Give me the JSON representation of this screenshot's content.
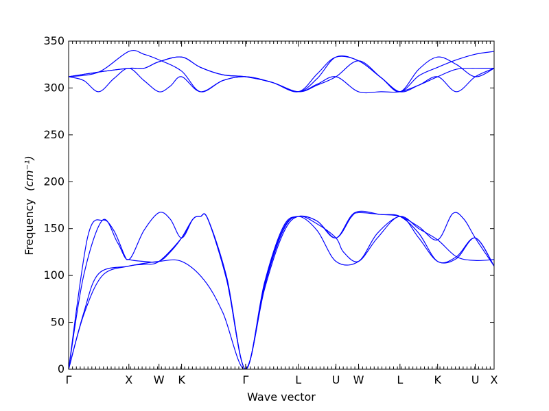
{
  "chart_data": {
    "type": "line",
    "title": "",
    "xlabel": "Wave vector",
    "ylabel": "Frequency",
    "ylabel_unit": "(cm⁻¹)",
    "ylim": [
      0,
      350
    ],
    "yticks": [
      0,
      50,
      100,
      150,
      200,
      250,
      300,
      350
    ],
    "xlim": [
      0,
      11.3
    ],
    "points": [
      {
        "label": "Γ",
        "x": 0
      },
      {
        "label": "X",
        "x": 1.6
      },
      {
        "label": "W",
        "x": 2.4
      },
      {
        "label": "K",
        "x": 3.0
      },
      {
        "label": "Γ",
        "x": 4.7
      },
      {
        "label": "L",
        "x": 6.1
      },
      {
        "label": "U",
        "x": 7.1
      },
      {
        "label": "W",
        "x": 7.7
      },
      {
        "label": "L",
        "x": 8.8
      },
      {
        "label": "K",
        "x": 9.8
      },
      {
        "label": "U",
        "x": 10.8
      },
      {
        "label": "X",
        "x": 11.3
      }
    ],
    "line_color": "#0000ff",
    "series": [
      {
        "values": [
          [
            0,
            0
          ],
          [
            0.4,
            60
          ],
          [
            0.8,
            102
          ],
          [
            1.6,
            110
          ],
          [
            2.4,
            115
          ],
          [
            3.0,
            115
          ],
          [
            3.6,
            95
          ],
          [
            4.1,
            60
          ],
          [
            4.7,
            0
          ],
          [
            5.2,
            85
          ],
          [
            5.7,
            145
          ],
          [
            6.1,
            163
          ],
          [
            6.6,
            155
          ],
          [
            7.1,
            140
          ],
          [
            7.3,
            125
          ],
          [
            7.7,
            115
          ],
          [
            8.2,
            140
          ],
          [
            8.8,
            163
          ],
          [
            9.3,
            140
          ],
          [
            9.8,
            115
          ],
          [
            10.3,
            118
          ],
          [
            10.8,
            140
          ],
          [
            11.3,
            110
          ]
        ]
      },
      {
        "values": [
          [
            0,
            0
          ],
          [
            0.4,
            58
          ],
          [
            0.9,
            100
          ],
          [
            1.6,
            110
          ],
          [
            2.0,
            112
          ],
          [
            2.4,
            115
          ],
          [
            3.0,
            140
          ],
          [
            3.3,
            160
          ],
          [
            3.5,
            163
          ],
          [
            3.7,
            160
          ],
          [
            4.2,
            95
          ],
          [
            4.7,
            0
          ],
          [
            5.2,
            88
          ],
          [
            5.7,
            148
          ],
          [
            6.1,
            163
          ],
          [
            6.6,
            148
          ],
          [
            7.1,
            115
          ],
          [
            7.7,
            115
          ],
          [
            8.2,
            145
          ],
          [
            8.8,
            163
          ],
          [
            9.3,
            150
          ],
          [
            9.8,
            138
          ],
          [
            10.3,
            120
          ],
          [
            10.8,
            116
          ],
          [
            11.3,
            117
          ]
        ]
      },
      {
        "values": [
          [
            0,
            0
          ],
          [
            0.5,
            140
          ],
          [
            0.9,
            159
          ],
          [
            1.2,
            148
          ],
          [
            1.5,
            120
          ],
          [
            1.6,
            117
          ],
          [
            2.0,
            115
          ],
          [
            2.4,
            115
          ],
          [
            2.7,
            125
          ],
          [
            3.0,
            140
          ],
          [
            3.3,
            160
          ],
          [
            3.5,
            163
          ],
          [
            3.7,
            160
          ],
          [
            4.2,
            95
          ],
          [
            4.7,
            0
          ],
          [
            5.2,
            90
          ],
          [
            5.7,
            150
          ],
          [
            6.1,
            163
          ],
          [
            6.6,
            158
          ],
          [
            7.1,
            140
          ],
          [
            7.6,
            167
          ],
          [
            8.3,
            165
          ],
          [
            8.8,
            163
          ],
          [
            9.3,
            152
          ],
          [
            9.8,
            138
          ],
          [
            10.2,
            166
          ],
          [
            10.5,
            160
          ],
          [
            10.8,
            140
          ],
          [
            11.3,
            110
          ]
        ]
      },
      {
        "values": [
          [
            0,
            0
          ],
          [
            0.4,
            100
          ],
          [
            0.9,
            159
          ],
          [
            1.3,
            135
          ],
          [
            1.6,
            117
          ],
          [
            2.0,
            148
          ],
          [
            2.4,
            167
          ],
          [
            2.7,
            160
          ],
          [
            3.0,
            140
          ],
          [
            3.3,
            160
          ],
          [
            3.5,
            163
          ],
          [
            3.7,
            160
          ],
          [
            4.2,
            98
          ],
          [
            4.7,
            0
          ],
          [
            5.2,
            92
          ],
          [
            5.7,
            152
          ],
          [
            6.1,
            163
          ],
          [
            6.6,
            158
          ],
          [
            7.1,
            140
          ],
          [
            7.5,
            162
          ],
          [
            7.7,
            167
          ],
          [
            8.3,
            165
          ],
          [
            8.8,
            163
          ],
          [
            9.3,
            145
          ],
          [
            9.8,
            115
          ],
          [
            10.3,
            120
          ],
          [
            10.8,
            140
          ],
          [
            11.3,
            110
          ]
        ]
      },
      {
        "values": [
          [
            0,
            312
          ],
          [
            0.4,
            308
          ],
          [
            0.8,
            296
          ],
          [
            1.2,
            310
          ],
          [
            1.6,
            321
          ],
          [
            2.0,
            308
          ],
          [
            2.4,
            296
          ],
          [
            2.7,
            302
          ],
          [
            3.0,
            312
          ],
          [
            3.5,
            296
          ],
          [
            4.1,
            308
          ],
          [
            4.7,
            312
          ],
          [
            5.4,
            306
          ],
          [
            6.1,
            296
          ],
          [
            6.6,
            304
          ],
          [
            7.1,
            312
          ],
          [
            7.7,
            296
          ],
          [
            8.3,
            296
          ],
          [
            8.8,
            296
          ],
          [
            9.3,
            303
          ],
          [
            9.8,
            312
          ],
          [
            10.3,
            296
          ],
          [
            10.8,
            312
          ],
          [
            11.3,
            321
          ]
        ]
      },
      {
        "values": [
          [
            0,
            312
          ],
          [
            0.8,
            317
          ],
          [
            1.6,
            321
          ],
          [
            2.0,
            321
          ],
          [
            2.4,
            328
          ],
          [
            3.0,
            333
          ],
          [
            3.5,
            322
          ],
          [
            4.1,
            314
          ],
          [
            4.7,
            312
          ],
          [
            5.4,
            306
          ],
          [
            6.1,
            296
          ],
          [
            6.6,
            303
          ],
          [
            7.1,
            312
          ],
          [
            7.7,
            329
          ],
          [
            8.3,
            311
          ],
          [
            8.8,
            296
          ],
          [
            9.3,
            303
          ],
          [
            9.8,
            312
          ],
          [
            10.3,
            320
          ],
          [
            10.8,
            321
          ],
          [
            11.3,
            321
          ]
        ]
      },
      {
        "values": [
          [
            0,
            312
          ],
          [
            0.8,
            317
          ],
          [
            1.6,
            321
          ],
          [
            2.0,
            321
          ],
          [
            2.4,
            328
          ],
          [
            3.0,
            333
          ],
          [
            3.5,
            322
          ],
          [
            4.1,
            314
          ],
          [
            4.7,
            312
          ],
          [
            5.4,
            306
          ],
          [
            6.1,
            296
          ],
          [
            6.6,
            310
          ],
          [
            7.1,
            333
          ],
          [
            7.7,
            329
          ],
          [
            8.3,
            311
          ],
          [
            8.8,
            296
          ],
          [
            9.3,
            320
          ],
          [
            9.8,
            333
          ],
          [
            10.3,
            325
          ],
          [
            10.8,
            312
          ],
          [
            11.3,
            321
          ]
        ]
      },
      {
        "values": [
          [
            0,
            312
          ],
          [
            0.8,
            317
          ],
          [
            1.6,
            339
          ],
          [
            2.0,
            336
          ],
          [
            2.4,
            330
          ],
          [
            3.0,
            318
          ],
          [
            3.5,
            296
          ],
          [
            4.1,
            308
          ],
          [
            4.7,
            312
          ],
          [
            5.4,
            306
          ],
          [
            6.1,
            296
          ],
          [
            6.6,
            315
          ],
          [
            7.1,
            333
          ],
          [
            7.7,
            329
          ],
          [
            8.3,
            311
          ],
          [
            8.8,
            296
          ],
          [
            9.3,
            313
          ],
          [
            9.8,
            322
          ],
          [
            10.3,
            330
          ],
          [
            10.8,
            336
          ],
          [
            11.3,
            339
          ]
        ]
      }
    ]
  }
}
